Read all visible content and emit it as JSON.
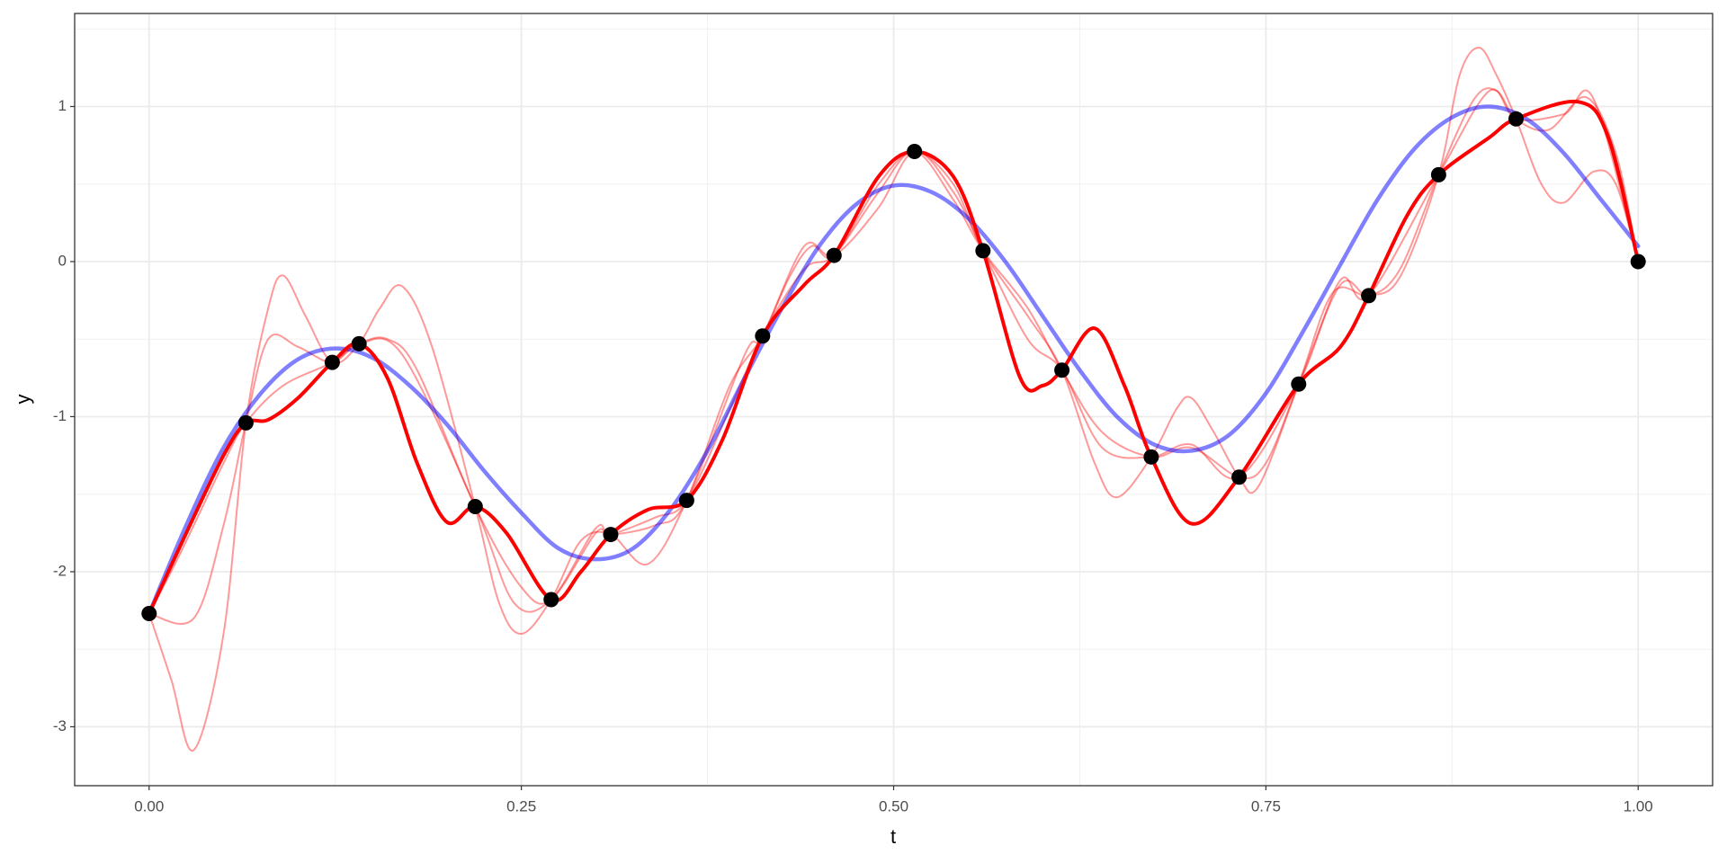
{
  "chart_data": {
    "type": "line",
    "x_label": "t",
    "y_label": "y",
    "xlim": [
      -0.05,
      1.05
    ],
    "ylim": [
      -3.38,
      1.6
    ],
    "xticks": [
      {
        "value": 0,
        "label": "0.00"
      },
      {
        "value": 0.25,
        "label": "0.25"
      },
      {
        "value": 0.5,
        "label": "0.50"
      },
      {
        "value": 0.75,
        "label": "0.75"
      },
      {
        "value": 1,
        "label": "1.00"
      }
    ],
    "yticks": [
      -3,
      -2,
      -1,
      0,
      1
    ],
    "xminor": [
      0.125,
      0.375,
      0.625,
      0.875
    ],
    "yminor": [
      -2.5,
      -1.5,
      -0.5,
      0.5,
      1.5
    ],
    "grid": true,
    "series": [
      {
        "kind": "line",
        "color": "#ff0000",
        "opacity": 0.4,
        "width": 2,
        "x": [
          0,
          0.015,
          0.03,
          0.05,
          0.065,
          0.08,
          0.09,
          0.105,
          0.123,
          0.141,
          0.155,
          0.17,
          0.19,
          0.219,
          0.235,
          0.25,
          0.27,
          0.29,
          0.31,
          0.335,
          0.361,
          0.39,
          0.412,
          0.43,
          0.445,
          0.46,
          0.49,
          0.514,
          0.54,
          0.56,
          0.59,
          0.613,
          0.635,
          0.65,
          0.673,
          0.69,
          0.7,
          0.715,
          0.732,
          0.745,
          0.772,
          0.795,
          0.819,
          0.84,
          0.866,
          0.88,
          0.893,
          0.905,
          0.918,
          0.935,
          0.95,
          0.97,
          0.985,
          1.0
        ],
        "values": [
          -2.27,
          -2.7,
          -3.15,
          -2.4,
          -1.04,
          -0.3,
          -0.09,
          -0.35,
          -0.65,
          -0.53,
          -0.3,
          -0.16,
          -0.55,
          -1.58,
          -2.2,
          -2.4,
          -2.18,
          -1.8,
          -1.76,
          -1.95,
          -1.54,
          -0.8,
          -0.48,
          -0.1,
          0.1,
          0.04,
          0.5,
          0.71,
          0.5,
          0.07,
          -0.35,
          -0.7,
          -1.3,
          -1.52,
          -1.26,
          -0.95,
          -0.88,
          -1.1,
          -1.39,
          -1.45,
          -0.79,
          -0.2,
          -0.22,
          -0.1,
          0.56,
          1.2,
          1.38,
          1.2,
          0.92,
          0.5,
          0.38,
          0.58,
          0.5,
          0.0
        ]
      },
      {
        "kind": "line",
        "color": "#ff0000",
        "opacity": 0.4,
        "width": 2,
        "x": [
          0,
          0.02,
          0.05,
          0.065,
          0.09,
          0.123,
          0.141,
          0.16,
          0.18,
          0.219,
          0.25,
          0.27,
          0.3,
          0.31,
          0.34,
          0.361,
          0.39,
          0.412,
          0.44,
          0.46,
          0.49,
          0.514,
          0.54,
          0.56,
          0.59,
          0.613,
          0.64,
          0.673,
          0.7,
          0.732,
          0.75,
          0.772,
          0.8,
          0.819,
          0.84,
          0.866,
          0.89,
          0.905,
          0.918,
          0.94,
          0.965,
          0.985,
          1.0
        ],
        "values": [
          -2.27,
          -1.9,
          -1.3,
          -1.04,
          -0.8,
          -0.65,
          -0.53,
          -0.5,
          -0.7,
          -1.58,
          -2.1,
          -2.18,
          -1.75,
          -1.76,
          -1.65,
          -1.54,
          -0.95,
          -0.48,
          -0.05,
          0.04,
          0.45,
          0.71,
          0.4,
          0.07,
          -0.3,
          -0.7,
          -1.1,
          -1.26,
          -1.2,
          -1.39,
          -1.3,
          -0.79,
          -0.15,
          -0.22,
          -0.05,
          0.56,
          1.05,
          1.1,
          0.92,
          0.85,
          1.06,
          0.7,
          0.0
        ]
      },
      {
        "kind": "line",
        "color": "#ff0000",
        "opacity": 0.4,
        "width": 2,
        "x": [
          0,
          0.03,
          0.05,
          0.065,
          0.08,
          0.1,
          0.123,
          0.141,
          0.17,
          0.219,
          0.245,
          0.27,
          0.3,
          0.31,
          0.34,
          0.361,
          0.4,
          0.412,
          0.44,
          0.46,
          0.49,
          0.514,
          0.54,
          0.56,
          0.59,
          0.613,
          0.64,
          0.673,
          0.7,
          0.732,
          0.772,
          0.8,
          0.819,
          0.866,
          0.9,
          0.918,
          0.95,
          0.97,
          1.0
        ],
        "values": [
          -2.27,
          -2.3,
          -1.7,
          -1.04,
          -0.5,
          -0.55,
          -0.65,
          -0.53,
          -0.6,
          -1.58,
          -2.2,
          -2.18,
          -1.72,
          -1.76,
          -1.7,
          -1.54,
          -0.6,
          -0.48,
          0.1,
          0.04,
          0.35,
          0.71,
          0.45,
          0.07,
          -0.5,
          -0.7,
          -1.2,
          -1.26,
          -1.18,
          -1.39,
          -0.79,
          -0.12,
          -0.22,
          0.56,
          1.1,
          0.92,
          0.95,
          1.05,
          0.0
        ]
      },
      {
        "kind": "line",
        "color": "#0000ff",
        "opacity": 0.5,
        "width": 4.5,
        "x": [
          0,
          0.025,
          0.05,
          0.075,
          0.1,
          0.125,
          0.15,
          0.175,
          0.2,
          0.225,
          0.25,
          0.275,
          0.3,
          0.325,
          0.35,
          0.375,
          0.4,
          0.425,
          0.45,
          0.475,
          0.5,
          0.525,
          0.55,
          0.575,
          0.6,
          0.625,
          0.65,
          0.675,
          0.7,
          0.725,
          0.75,
          0.775,
          0.8,
          0.825,
          0.85,
          0.875,
          0.9,
          0.925,
          0.95,
          0.975,
          1.0
        ],
        "values": [
          -2.27,
          -1.7,
          -1.2,
          -0.85,
          -0.63,
          -0.56,
          -0.62,
          -0.8,
          -1.05,
          -1.35,
          -1.62,
          -1.85,
          -1.92,
          -1.85,
          -1.6,
          -1.22,
          -0.75,
          -0.3,
          0.1,
          0.37,
          0.49,
          0.45,
          0.28,
          0.0,
          -0.35,
          -0.7,
          -1.0,
          -1.18,
          -1.22,
          -1.12,
          -0.85,
          -0.45,
          -0.02,
          0.4,
          0.73,
          0.93,
          1.0,
          0.92,
          0.7,
          0.4,
          0.1
        ]
      },
      {
        "kind": "line",
        "color": "#ff0000",
        "opacity": 1,
        "width": 4,
        "x": [
          0,
          0.025,
          0.05,
          0.065,
          0.08,
          0.1,
          0.123,
          0.141,
          0.16,
          0.18,
          0.2,
          0.219,
          0.24,
          0.27,
          0.29,
          0.31,
          0.335,
          0.361,
          0.385,
          0.412,
          0.44,
          0.46,
          0.49,
          0.514,
          0.54,
          0.56,
          0.585,
          0.6,
          0.613,
          0.635,
          0.655,
          0.673,
          0.7,
          0.732,
          0.772,
          0.8,
          0.819,
          0.845,
          0.866,
          0.9,
          0.918,
          0.96,
          0.98,
          1.0
        ],
        "values": [
          -2.27,
          -1.75,
          -1.25,
          -1.04,
          -1.02,
          -0.88,
          -0.65,
          -0.53,
          -0.75,
          -1.3,
          -1.68,
          -1.58,
          -1.75,
          -2.18,
          -2.0,
          -1.76,
          -1.6,
          -1.54,
          -1.15,
          -0.48,
          -0.15,
          0.04,
          0.55,
          0.71,
          0.55,
          0.07,
          -0.75,
          -0.8,
          -0.7,
          -0.43,
          -0.8,
          -1.26,
          -1.69,
          -1.39,
          -0.79,
          -0.55,
          -0.22,
          0.3,
          0.56,
          0.8,
          0.92,
          1.03,
          0.8,
          0.0
        ]
      },
      {
        "kind": "points",
        "color": "#000000",
        "opacity": 1,
        "width": 8.5,
        "x": [
          0,
          0.065,
          0.123,
          0.141,
          0.219,
          0.27,
          0.31,
          0.361,
          0.412,
          0.46,
          0.514,
          0.56,
          0.613,
          0.673,
          0.732,
          0.772,
          0.819,
          0.866,
          0.918,
          1.0
        ],
        "values": [
          -2.27,
          -1.04,
          -0.65,
          -0.53,
          -1.58,
          -2.18,
          -1.76,
          -1.54,
          -0.48,
          0.04,
          0.71,
          0.07,
          -0.7,
          -1.26,
          -1.39,
          -0.79,
          -0.22,
          0.56,
          0.92,
          0.0
        ]
      }
    ]
  }
}
